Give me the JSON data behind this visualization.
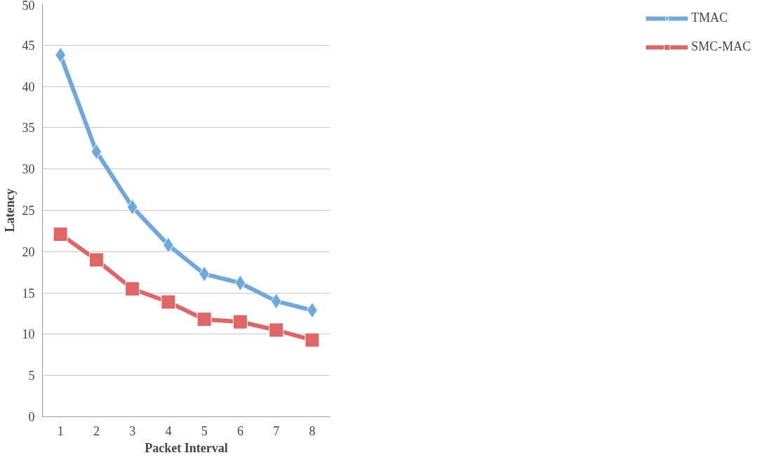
{
  "chart_data": {
    "type": "line",
    "xlabel": "Packet Interval",
    "ylabel": "Latency",
    "categories": [
      "1",
      "2",
      "3",
      "4",
      "5",
      "6",
      "7",
      "8"
    ],
    "series": [
      {
        "name": "TMAC",
        "color": "#6fa8dc",
        "marker": "diamond",
        "values": [
          43.8,
          32.1,
          25.4,
          20.8,
          17.3,
          16.2,
          14.0,
          12.9
        ]
      },
      {
        "name": "SMC-MAC",
        "color": "#e06666",
        "marker": "square",
        "values": [
          22.1,
          19.0,
          15.5,
          13.9,
          11.8,
          11.5,
          10.5,
          9.3
        ]
      }
    ],
    "ylim": [
      0,
      50
    ],
    "yticks": [
      0,
      5,
      10,
      15,
      20,
      25,
      30,
      35,
      40,
      45,
      50
    ],
    "grid": "y",
    "legend": "right",
    "line_style": "solid"
  }
}
